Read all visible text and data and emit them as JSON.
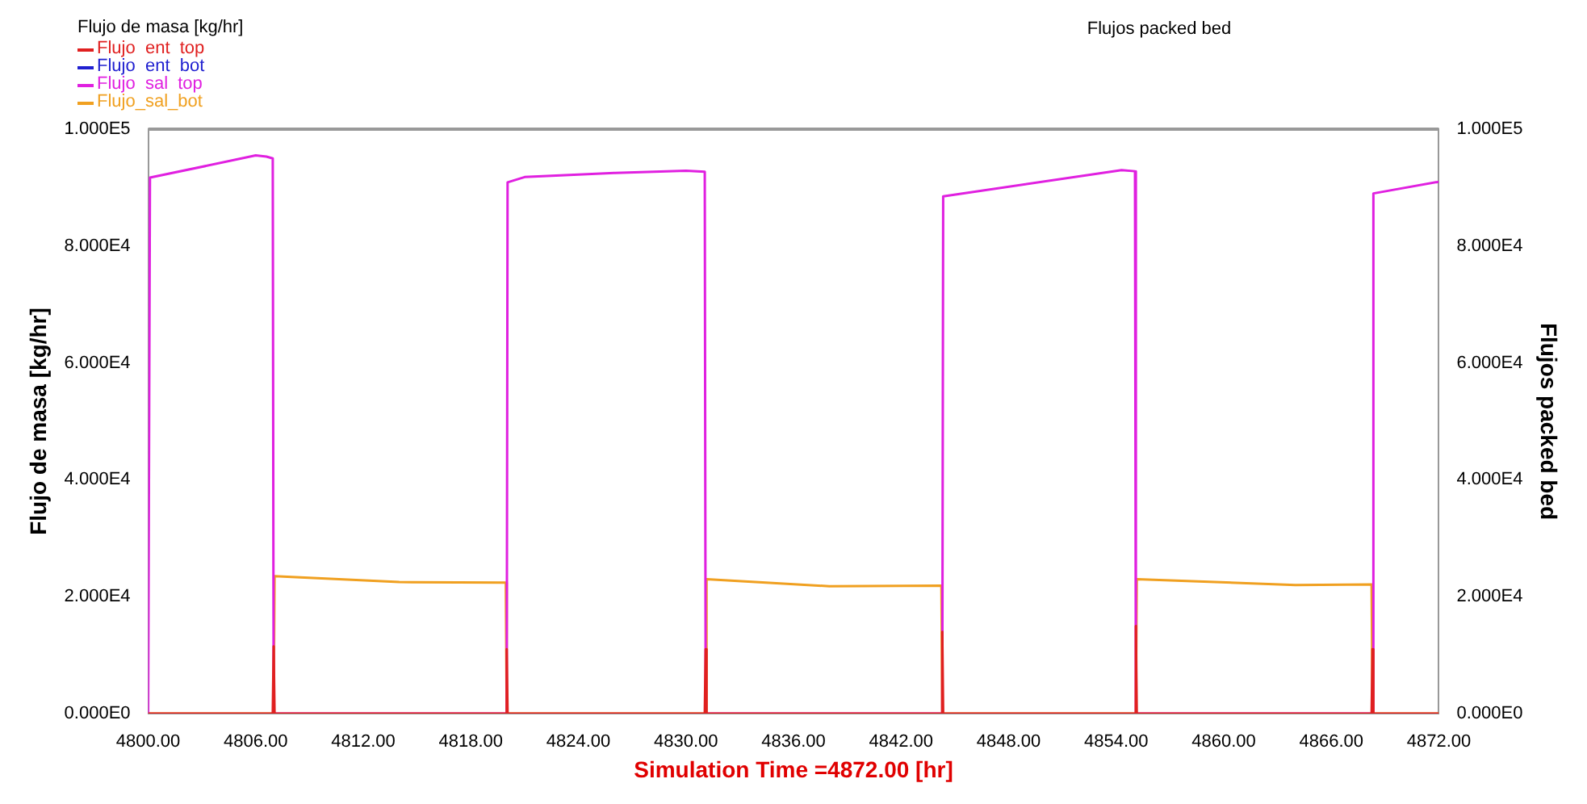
{
  "chart_data": {
    "type": "line",
    "title": "Flujos packed bed",
    "legend_title": "Flujo de masa [kg/hr]",
    "xlabel": "Simulation Time =4872.00 [hr]",
    "ylabel": "Flujo de masa [kg/hr]",
    "y2label": "Flujos packed bed",
    "xlim": [
      4800,
      4872
    ],
    "xticks": [
      {
        "value": 4800,
        "label": "4800.00"
      },
      {
        "value": 4806,
        "label": "4806.00"
      },
      {
        "value": 4812,
        "label": "4812.00"
      },
      {
        "value": 4818,
        "label": "4818.00"
      },
      {
        "value": 4824,
        "label": "4824.00"
      },
      {
        "value": 4830,
        "label": "4830.00"
      },
      {
        "value": 4836,
        "label": "4836.00"
      },
      {
        "value": 4842,
        "label": "4842.00"
      },
      {
        "value": 4848,
        "label": "4848.00"
      },
      {
        "value": 4854,
        "label": "4854.00"
      },
      {
        "value": 4860,
        "label": "4860.00"
      },
      {
        "value": 4866,
        "label": "4866.00"
      },
      {
        "value": 4872,
        "label": "4872.00"
      }
    ],
    "ylim": [
      0,
      100000
    ],
    "yticks": [
      {
        "value": 0,
        "label": "0.000E0"
      },
      {
        "value": 20000,
        "label": "2.000E4"
      },
      {
        "value": 40000,
        "label": "4.000E4"
      },
      {
        "value": 60000,
        "label": "6.000E4"
      },
      {
        "value": 80000,
        "label": "8.000E4"
      },
      {
        "value": 100000,
        "label": "1.000E5"
      }
    ],
    "y2lim": [
      0,
      100000
    ],
    "y2ticks": [
      {
        "value": 0,
        "label": "0.000E0"
      },
      {
        "value": 20000,
        "label": "2.000E4"
      },
      {
        "value": 40000,
        "label": "4.000E4"
      },
      {
        "value": 60000,
        "label": "6.000E4"
      },
      {
        "value": 80000,
        "label": "8.000E4"
      },
      {
        "value": 100000,
        "label": "1.000E5"
      }
    ],
    "grid": false,
    "legend": "top left",
    "marker": "none",
    "line_style": "solid",
    "series": [
      {
        "name": "Flujo  ent  top",
        "color": "#e02020",
        "x": [
          4800,
          4806.95,
          4807.0,
          4807.05,
          4819.95,
          4820.0,
          4820.05,
          4831.05,
          4831.1,
          4831.15,
          4844.25,
          4844.3,
          4844.35,
          4855.05,
          4855.1,
          4855.15,
          4868.25,
          4868.3,
          4868.35,
          4872
        ],
        "values": [
          0,
          0,
          11500,
          0,
          0,
          11000,
          0,
          0,
          11000,
          0,
          0,
          14000,
          0,
          0,
          15000,
          0,
          0,
          11000,
          0,
          0
        ]
      },
      {
        "name": "Flujo  ent  bot",
        "color": "#2020d0"
      },
      {
        "name": "Flujo  sal  top",
        "color": "#e020e0",
        "x": [
          4800,
          4800.1,
          4806.0,
          4806.6,
          4806.95,
          4807.0,
          4820.0,
          4820.05,
          4821,
          4826,
          4830,
          4831.05,
          4831.1,
          4844.3,
          4844.35,
          4854.3,
          4855.05,
          4855.1,
          4868.3,
          4868.35,
          4872
        ],
        "values": [
          0,
          91700,
          95500,
          95300,
          95000,
          0,
          0,
          90900,
          91800,
          92500,
          92900,
          92700,
          0,
          0,
          88500,
          93000,
          92800,
          0,
          0,
          89000,
          91000
        ]
      },
      {
        "name": "Flujo_sal_bot",
        "color": "#f0a020",
        "x": [
          4800,
          4807.0,
          4807.05,
          4814,
          4819.95,
          4820.0,
          4831.1,
          4831.15,
          4838,
          4844.25,
          4844.3,
          4855.1,
          4855.15,
          4864,
          4868.25,
          4868.3,
          4872
        ],
        "values": [
          0,
          0,
          23500,
          22500,
          22400,
          0,
          0,
          23000,
          21800,
          21900,
          0,
          0,
          23000,
          22000,
          22100,
          0,
          0
        ]
      }
    ]
  }
}
